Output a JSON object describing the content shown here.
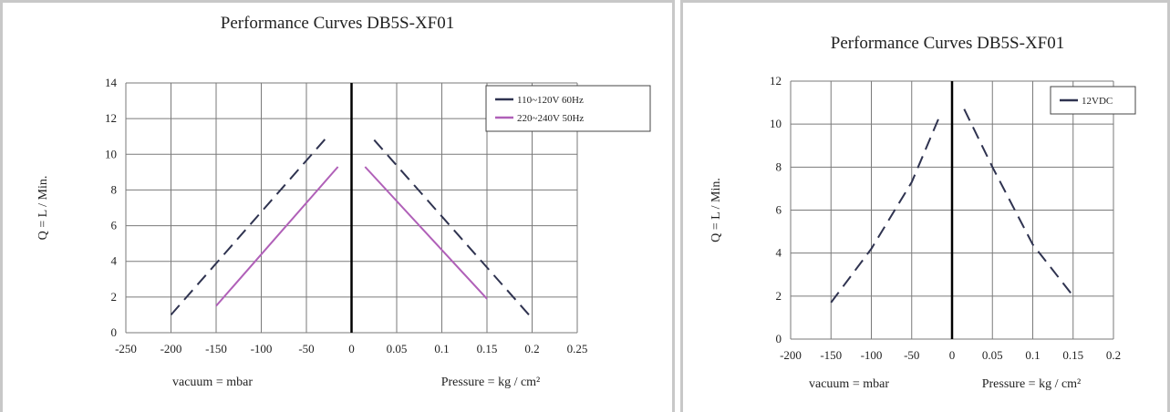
{
  "chart_data": [
    {
      "type": "line",
      "title": "Performance  Curves  DB5S-XF01",
      "ylabel": "Q = L / Min.",
      "xlabel_left": "vacuum = mbar",
      "xlabel_right": "Pressure = kg / cm²",
      "ylim": [
        0,
        14
      ],
      "y_ticks": [
        "0",
        "2",
        "4",
        "6",
        "8",
        "10",
        "12",
        "14"
      ],
      "x_ticks": [
        "-250",
        "-200",
        "-150",
        "-100",
        "-50",
        "0",
        "0.05",
        "0.1",
        "0.15",
        "0.2",
        "0.25"
      ],
      "grid": true,
      "legend_placement": "top-right",
      "series": [
        {
          "name": "110~120V 60Hz",
          "color": "#2f3350",
          "style": "dashed",
          "vacuum_segment": [
            [
              -200,
              1
            ],
            [
              -25,
              11.1
            ]
          ],
          "pressure_segment": [
            [
              0.025,
              10.8
            ],
            [
              0.2,
              0.8
            ]
          ]
        },
        {
          "name": "220~240V 50Hz",
          "color": "#b060b8",
          "style": "solid",
          "vacuum_segment": [
            [
              -150,
              1.5
            ],
            [
              -15,
              9.3
            ]
          ],
          "pressure_segment": [
            [
              0.015,
              9.3
            ],
            [
              0.15,
              1.9
            ]
          ]
        }
      ]
    },
    {
      "type": "line",
      "title": "Performance  Curves  DB5S-XF01",
      "ylabel": "Q = L / Min.",
      "xlabel_left": "vacuum = mbar",
      "xlabel_right": "Pressure = kg / cm²",
      "ylim": [
        0,
        12
      ],
      "y_ticks": [
        "0",
        "2",
        "4",
        "6",
        "8",
        "10",
        "12"
      ],
      "x_ticks": [
        "-200",
        "-150",
        "-100",
        "-50",
        "0",
        "0.05",
        "0.1",
        "0.15",
        "0.2"
      ],
      "grid": true,
      "legend_placement": "top-right",
      "series": [
        {
          "name": "12VDC",
          "color": "#2f3350",
          "style": "dashed",
          "vacuum_segment": [
            [
              -150,
              1.7
            ],
            [
              -100,
              4.2
            ],
            [
              -50,
              7.3
            ],
            [
              -15,
              10.4
            ]
          ],
          "pressure_segment": [
            [
              0.015,
              10.7
            ],
            [
              0.05,
              8
            ],
            [
              0.1,
              4.4
            ],
            [
              0.15,
              2
            ]
          ]
        }
      ]
    }
  ]
}
